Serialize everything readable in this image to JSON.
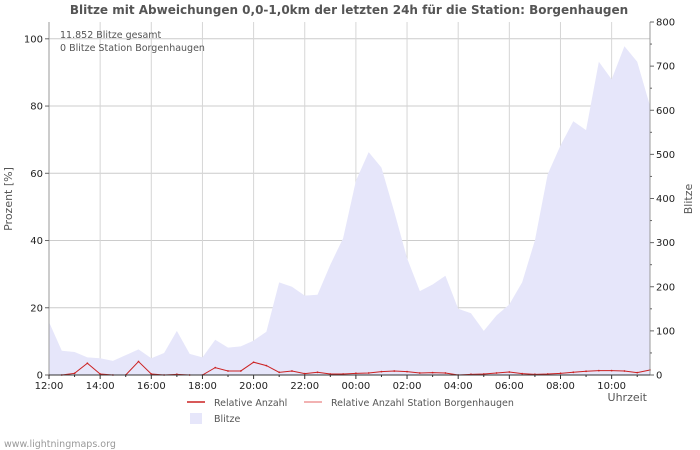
{
  "chart_data": {
    "type": "area",
    "title": "Blitze mit Abweichungen 0,0-1,0km der letzten 24h für die Station: Borgenhaugen",
    "info_lines": [
      "11.852 Blitze gesamt",
      "0 Blitze Station Borgenhaugen"
    ],
    "ylabel_left": "Prozent   [%]",
    "ylabel_right": "Blitze",
    "xlabel": "Uhrzeit",
    "x_tick_labels": [
      "12:00",
      "14:00",
      "16:00",
      "18:00",
      "20:00",
      "22:00",
      "00:00",
      "02:00",
      "04:00",
      "06:00",
      "08:00",
      "10:00"
    ],
    "x_range_hours": [
      0,
      23.5
    ],
    "y_left": {
      "range": [
        0,
        105
      ],
      "ticks": [
        0,
        20,
        40,
        60,
        80,
        100
      ]
    },
    "y_right": {
      "range": [
        0,
        800
      ],
      "ticks": [
        0,
        100,
        200,
        300,
        400,
        500,
        600,
        700,
        800
      ]
    },
    "series": [
      {
        "name": "Blitze",
        "axis": "right",
        "style": "area",
        "color": "#e6e6fa",
        "x": [
          0,
          0.5,
          1,
          1.5,
          2,
          2.5,
          3,
          3.5,
          4,
          4.5,
          5,
          5.5,
          6,
          6.5,
          7,
          7.5,
          8,
          8.5,
          9,
          9.5,
          10,
          10.5,
          11,
          11.5,
          12,
          12.5,
          13,
          13.5,
          14,
          14.5,
          15,
          15.5,
          16,
          16.5,
          17,
          17.5,
          18,
          18.5,
          19,
          19.5,
          20,
          20.5,
          21,
          21.5,
          22,
          22.5,
          23,
          23.5
        ],
        "values": [
          120,
          55,
          52,
          40,
          38,
          32,
          45,
          58,
          38,
          50,
          100,
          48,
          40,
          80,
          62,
          65,
          78,
          98,
          210,
          200,
          180,
          182,
          250,
          310,
          440,
          505,
          470,
          370,
          265,
          190,
          205,
          225,
          150,
          140,
          100,
          135,
          160,
          210,
          305,
          455,
          520,
          575,
          555,
          710,
          670,
          745,
          710,
          610
        ]
      },
      {
        "name": "Relative Anzahl",
        "axis": "left",
        "style": "line",
        "color": "#cc2222",
        "x": [
          0,
          0.5,
          1,
          1.5,
          2,
          2.5,
          3,
          3.5,
          4,
          4.5,
          5,
          5.5,
          6,
          6.5,
          7,
          7.5,
          8,
          8.5,
          9,
          9.5,
          10,
          10.5,
          11,
          11.5,
          12,
          12.5,
          13,
          13.5,
          14,
          14.5,
          15,
          15.5,
          16,
          16.5,
          17,
          17.5,
          18,
          18.5,
          19,
          19.5,
          20,
          20.5,
          21,
          21.5,
          22,
          22.5,
          23,
          23.5
        ],
        "values": [
          0,
          0,
          0.5,
          3.5,
          0.3,
          0,
          0,
          4,
          0.3,
          0,
          0.2,
          0,
          0,
          2.2,
          1.2,
          1.2,
          3.8,
          2.8,
          0.8,
          1.2,
          0.4,
          0.8,
          0.3,
          0.3,
          0.5,
          0.6,
          1,
          1.2,
          1,
          0.6,
          0.7,
          0.6,
          0,
          0.2,
          0.3,
          0.6,
          0.9,
          0.4,
          0.2,
          0.3,
          0.5,
          0.8,
          1.1,
          1.3,
          1.3,
          1.2,
          0.7,
          1.5
        ]
      },
      {
        "name": "Relative Anzahl Station Borgenhaugen",
        "axis": "left",
        "style": "line",
        "color": "#ee9999",
        "x": [
          0,
          23.5
        ],
        "values": [
          0,
          0
        ]
      }
    ],
    "legend": {
      "placement": "bottom",
      "items": [
        {
          "label": "Relative Anzahl",
          "swatch": "line",
          "color": "#cc2222"
        },
        {
          "label": "Relative Anzahl Station Borgenhaugen",
          "swatch": "line",
          "color": "#ee9999"
        },
        {
          "label": "Blitze",
          "swatch": "box",
          "color": "#e6e6fa"
        }
      ]
    },
    "grid": true
  },
  "footer": "www.lightningmaps.org"
}
